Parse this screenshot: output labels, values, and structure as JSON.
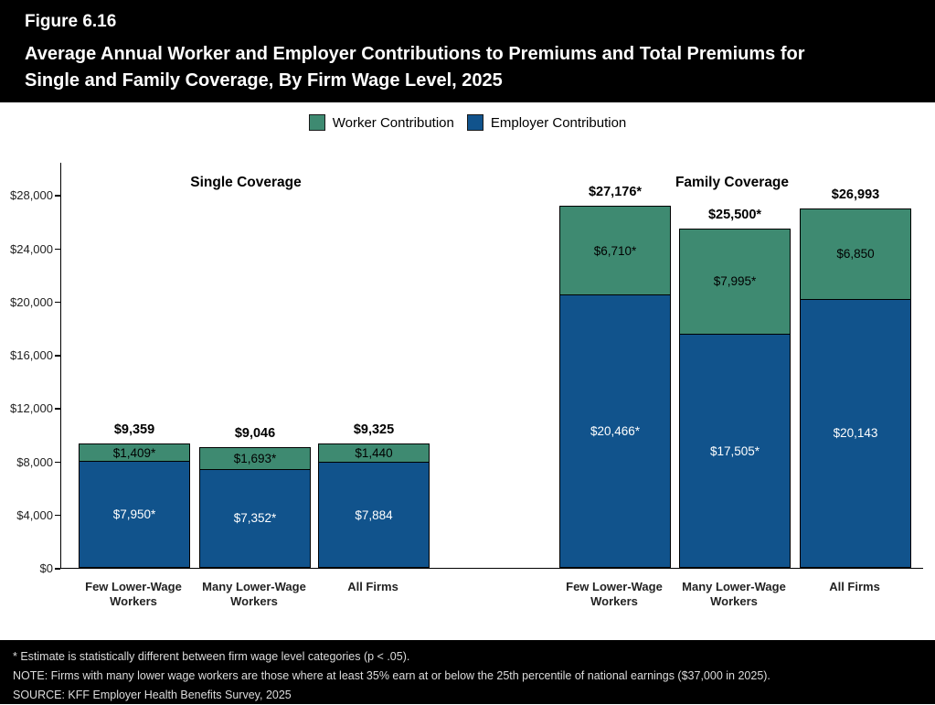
{
  "header": {
    "figure_label": "Figure 6.16",
    "title_lines": [
      "Average Annual Worker and Employer Contributions to Premiums and Total Premiums for",
      "Single and Family Coverage, By Firm Wage Level, 2025"
    ]
  },
  "legend": {
    "items": [
      {
        "name": "worker",
        "label": "Worker Contribution",
        "color": "#3E8A71"
      },
      {
        "name": "employer",
        "label": "Employer Contribution",
        "color": "#11538C"
      }
    ]
  },
  "chart_data": {
    "type": "bar",
    "stacked": true,
    "ylim": [
      0,
      30500
    ],
    "y_ticks": [
      0,
      4000,
      8000,
      12000,
      16000,
      20000,
      24000,
      28000
    ],
    "y_tick_labels": [
      "$0",
      "$4,000",
      "$8,000",
      "$12,000",
      "$16,000",
      "$20,000",
      "$24,000",
      "$28,000"
    ],
    "series_names": [
      "Worker Contribution",
      "Employer Contribution"
    ],
    "grid": false,
    "legend_position": "top",
    "groups": [
      {
        "title": "Single Coverage",
        "bars": [
          {
            "category": "Few Lower-Wage Workers",
            "worker": 1409,
            "employer": 7950,
            "total": 9359,
            "worker_label": "$1,409*",
            "employer_label": "$7,950*",
            "total_label": "$9,359"
          },
          {
            "category": "Many Lower-Wage Workers",
            "worker": 1693,
            "employer": 7352,
            "total": 9046,
            "worker_label": "$1,693*",
            "employer_label": "$7,352*",
            "total_label": "$9,046"
          },
          {
            "category": "All Firms",
            "worker": 1440,
            "employer": 7884,
            "total": 9325,
            "worker_label": "$1,440",
            "employer_label": "$7,884",
            "total_label": "$9,325"
          }
        ]
      },
      {
        "title": "Family Coverage",
        "bars": [
          {
            "category": "Few Lower-Wage Workers",
            "worker": 6710,
            "employer": 20466,
            "total": 27176,
            "worker_label": "$6,710*",
            "employer_label": "$20,466*",
            "total_label": "$27,176*"
          },
          {
            "category": "Many Lower-Wage Workers",
            "worker": 7995,
            "employer": 17505,
            "total": 25500,
            "worker_label": "$7,995*",
            "employer_label": "$17,505*",
            "total_label": "$25,500*"
          },
          {
            "category": "All Firms",
            "worker": 6850,
            "employer": 20143,
            "total": 26993,
            "worker_label": "$6,850",
            "employer_label": "$20,143",
            "total_label": "$26,993"
          }
        ]
      }
    ]
  },
  "footnotes": {
    "lines": [
      "* Estimate is statistically different between firm wage level categories (p < .05).",
      "NOTE: Firms with many lower wage workers are those where at least 35% earn at or below the 25th percentile of national earnings ($37,000 in 2025).",
      "SOURCE: KFF Employer Health Benefits Survey, 2025"
    ]
  }
}
